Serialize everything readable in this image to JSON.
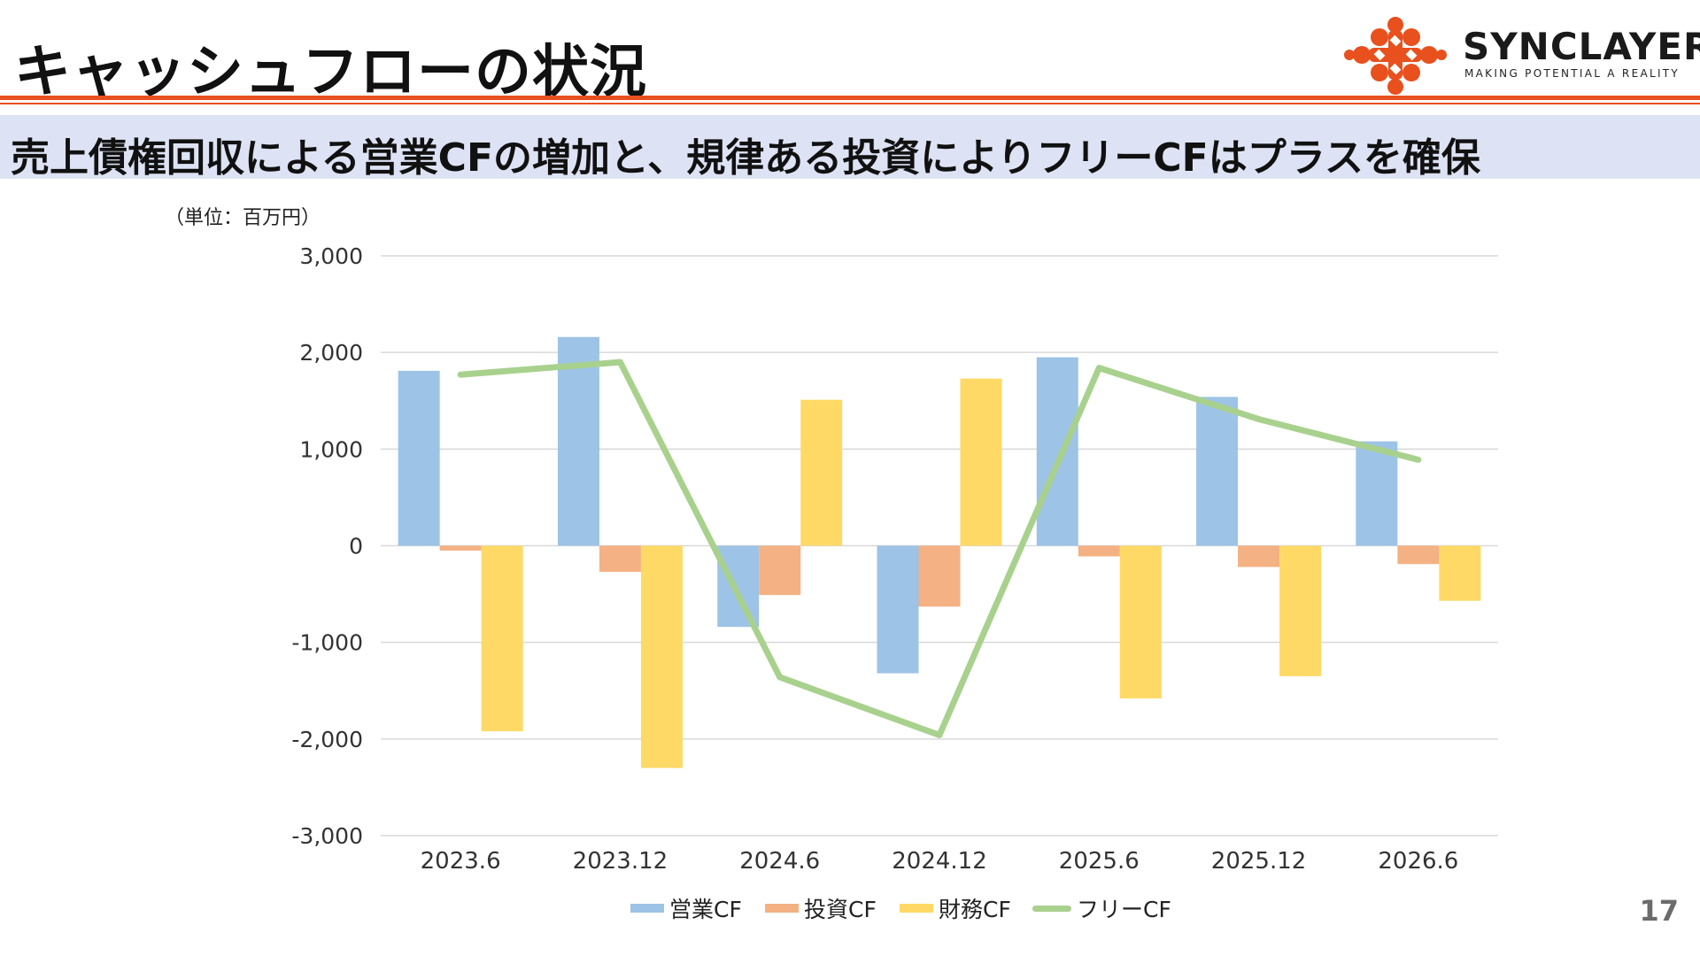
{
  "header": {
    "title": "キャッシュフローの状況",
    "subtitle": "売上債権回収による営業CFの増加と、規律ある投資によりフリーCFはプラスを確保",
    "brand": "SYNCLAYER",
    "tagline": "MAKING POTENTIAL A REALITY"
  },
  "page_number": "17",
  "colors": {
    "accent": "#e8501d",
    "subtitle_bg": "#dde3f4",
    "operating": "#9dc3e6",
    "investing": "#f4b183",
    "financing": "#ffd966",
    "free": "#a9d18e"
  },
  "chart_data": {
    "type": "bar",
    "unit_label": "（単位：百万円）",
    "categories": [
      "2023.6",
      "2023.12",
      "2024.6",
      "2024.12",
      "2025.6",
      "2025.12",
      "2026.6"
    ],
    "ylim": [
      -3000,
      3000
    ],
    "yticks": [
      3000,
      2000,
      1000,
      0,
      -1000,
      -2000,
      -3000
    ],
    "ytick_labels": [
      "3,000",
      "2,000",
      "1,000",
      "0",
      "-1,000",
      "-2,000",
      "-3,000"
    ],
    "grid": true,
    "legend_position": "bottom",
    "series": [
      {
        "name": "営業CF",
        "kind": "bar",
        "values": [
          1810,
          2160,
          -840,
          -1320,
          1950,
          1540,
          1080
        ]
      },
      {
        "name": "投資CF",
        "kind": "bar",
        "values": [
          -50,
          -270,
          -510,
          -630,
          -110,
          -220,
          -190
        ]
      },
      {
        "name": "財務CF",
        "kind": "bar",
        "values": [
          -1920,
          -2300,
          1510,
          1730,
          -1580,
          -1350,
          -570
        ]
      },
      {
        "name": "フリーCF",
        "kind": "line",
        "values": [
          1770,
          1900,
          -1360,
          -1960,
          1840,
          1310,
          890
        ]
      }
    ]
  }
}
